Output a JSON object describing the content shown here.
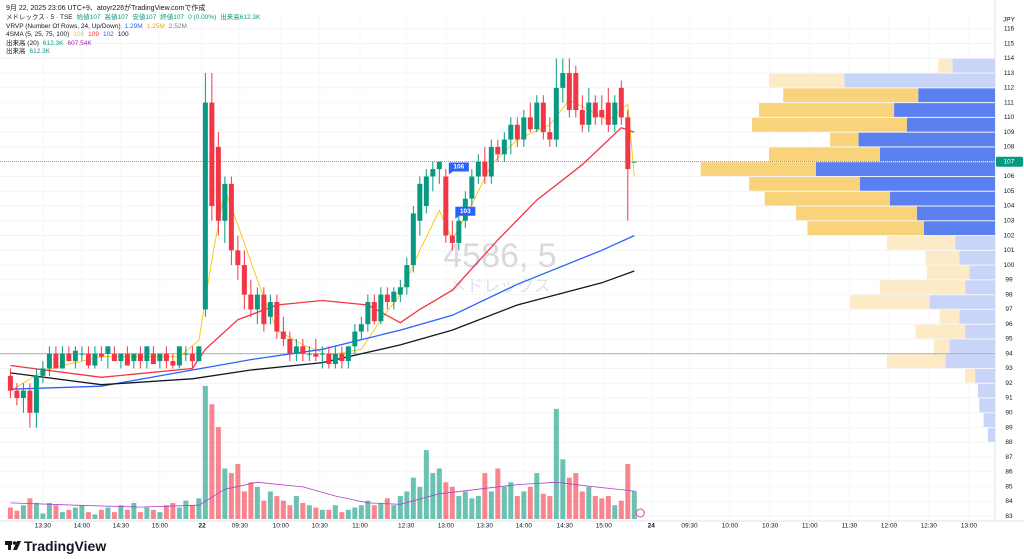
{
  "header": "9月 22, 2025 23:06 UTC+9、atoyr226がTradingView.comで作成",
  "brand": "TradingView",
  "chart_data": {
    "type": "candlestick",
    "legend": [
      {
        "name": "メドレックス · 5 · TSE",
        "values": [
          "始値107",
          "高値107",
          "安値107",
          "終値107",
          "0 (0.00%)",
          "出来高612.3K"
        ],
        "colors": [
          "#089981",
          "#089981",
          "#089981",
          "#089981",
          "#089981",
          "#089981"
        ]
      },
      {
        "name": "VRVP (Number Of Rows, 24, Up/Down)",
        "values": [
          "1.29M",
          "1.25M",
          "2.52M"
        ],
        "colors": [
          "#2962ff",
          "#f7a600",
          "#787b86"
        ]
      },
      {
        "name": "4SMA (5, 25, 75, 100)",
        "values": [
          "106",
          "109",
          "102",
          "100"
        ],
        "colors": [
          "#f7c600",
          "#f23645",
          "#2962ff",
          "#131722"
        ]
      },
      {
        "name": "出来高 (20)",
        "values": [
          "612.3K",
          "607.54K"
        ],
        "colors": [
          "#089981",
          "#9c27b0"
        ]
      },
      {
        "name": "出来高",
        "values": [
          "612.3K"
        ],
        "colors": [
          "#089981"
        ]
      }
    ],
    "watermark": "4586, 5",
    "watermark_sub": "メドレックス",
    "currency": "JPY",
    "xlim": [
      -1.6,
      151.5
    ],
    "xticks": [
      {
        "value": 5.0,
        "label": "13:30"
      },
      {
        "value": 11.0,
        "label": "14:00"
      },
      {
        "value": 17.0,
        "label": "14:30"
      },
      {
        "value": 23.0,
        "label": "15:00"
      },
      {
        "value": 29.5,
        "label": "22"
      },
      {
        "value": 35.3,
        "label": "09:30"
      },
      {
        "value": 41.6,
        "label": "10:00"
      },
      {
        "value": 47.6,
        "label": "10:30"
      },
      {
        "value": 53.8,
        "label": "11:00"
      },
      {
        "value": 60.9,
        "label": "12:30"
      },
      {
        "value": 67.0,
        "label": "13:00"
      },
      {
        "value": 73.0,
        "label": "13:30"
      },
      {
        "value": 79.0,
        "label": "14:00"
      },
      {
        "value": 85.3,
        "label": "14:30"
      },
      {
        "value": 91.3,
        "label": "15:00"
      },
      {
        "value": 98.6,
        "label": "24"
      },
      {
        "value": 104.5,
        "label": "09:30"
      },
      {
        "value": 110.7,
        "label": "10:00"
      },
      {
        "value": 116.9,
        "label": "10:30"
      },
      {
        "value": 123.0,
        "label": "11:00"
      },
      {
        "value": 129.1,
        "label": "11:30"
      },
      {
        "value": 135.2,
        "label": "12:00"
      },
      {
        "value": 141.3,
        "label": "12:30"
      },
      {
        "value": 147.5,
        "label": "13:00"
      }
    ],
    "ylim": [
      82.2,
      117
    ],
    "yticks": [
      83,
      84,
      85,
      86,
      87,
      88,
      89,
      90,
      91,
      92,
      93,
      94,
      95,
      96,
      97,
      98,
      99,
      100,
      101,
      102,
      103,
      104,
      105,
      106,
      107,
      108,
      109,
      110,
      111,
      112,
      113,
      114,
      115,
      116
    ],
    "grid": true,
    "up_color": "#089981",
    "down_color": "#f23645",
    "ohlc": [
      [
        92.5,
        93,
        91,
        91.5
      ],
      [
        91.5,
        92,
        90.5,
        91
      ],
      [
        91,
        92,
        90,
        91.5
      ],
      [
        91.5,
        92,
        89,
        90
      ],
      [
        90,
        93,
        89,
        92.5
      ],
      [
        92.5,
        93.5,
        92,
        93
      ],
      [
        93,
        94.5,
        92.5,
        94
      ],
      [
        94,
        94.5,
        93,
        93
      ],
      [
        93,
        94.5,
        93,
        94
      ],
      [
        94,
        94.5,
        93.5,
        93.5
      ],
      [
        93.5,
        94.5,
        93,
        94.2
      ],
      [
        94,
        94.5,
        93.5,
        94
      ],
      [
        94,
        94.5,
        93,
        93.2
      ],
      [
        93.2,
        94.5,
        93,
        94
      ],
      [
        94,
        94.5,
        93.5,
        93.8
      ],
      [
        94,
        94.5,
        93,
        94.5
      ],
      [
        94,
        94.5,
        93.5,
        93.5
      ],
      [
        93.5,
        94,
        93,
        94
      ],
      [
        94,
        94.5,
        93.5,
        93.2
      ],
      [
        93.5,
        94,
        93,
        94
      ],
      [
        94,
        94.5,
        93,
        93.5
      ],
      [
        93.5,
        94.5,
        93,
        94.5
      ],
      [
        94,
        94.5,
        93.5,
        93.3
      ],
      [
        93.5,
        94,
        93,
        94
      ],
      [
        94,
        94.5,
        93,
        93.5
      ],
      [
        93.5,
        94,
        93,
        93.2
      ],
      [
        93.2,
        94.5,
        93,
        94.5
      ],
      [
        94,
        94.5,
        93.5,
        94
      ],
      [
        94,
        94.5,
        93,
        93.5
      ],
      [
        93.5,
        94.5,
        93.5,
        94.5
      ],
      [
        97,
        113,
        96.5,
        111
      ],
      [
        111,
        113,
        103,
        104
      ],
      [
        108,
        109,
        102,
        103
      ],
      [
        103,
        106,
        101.5,
        105.5
      ],
      [
        105.5,
        106,
        100,
        101
      ],
      [
        101,
        102,
        99,
        100
      ],
      [
        100,
        101,
        97,
        98
      ],
      [
        98,
        99,
        96.5,
        97
      ],
      [
        97,
        98.5,
        96,
        98
      ],
      [
        98,
        98.5,
        95.5,
        96
      ],
      [
        96.5,
        98,
        96,
        97.5
      ],
      [
        97.5,
        98,
        95,
        95.5
      ],
      [
        95.5,
        96.5,
        94.5,
        95
      ],
      [
        95,
        95.5,
        93.5,
        94
      ],
      [
        94,
        95,
        93.5,
        94.5
      ],
      [
        94.5,
        95,
        93.5,
        94
      ],
      [
        94,
        94.5,
        93.5,
        94
      ],
      [
        94,
        95,
        93.5,
        93.8
      ],
      [
        94,
        94.5,
        93,
        94
      ],
      [
        94,
        94.5,
        93,
        93.3
      ],
      [
        93.3,
        94.5,
        93,
        94
      ],
      [
        94,
        94.5,
        93,
        93.5
      ],
      [
        93.5,
        94.5,
        93,
        94.5
      ],
      [
        94.5,
        96,
        94,
        95.5
      ],
      [
        95.5,
        96.5,
        95,
        96
      ],
      [
        96,
        98,
        95.5,
        97.5
      ],
      [
        97.5,
        98,
        96,
        96.2
      ],
      [
        96.2,
        98.5,
        96,
        98
      ],
      [
        98,
        98.5,
        97,
        97.5
      ],
      [
        97.5,
        98.5,
        97,
        98.2
      ],
      [
        98,
        99,
        97.5,
        98.5
      ],
      [
        98.5,
        100.5,
        98,
        100
      ],
      [
        100,
        104,
        99.5,
        103.5
      ],
      [
        103,
        106,
        102,
        105.5
      ],
      [
        104,
        106.5,
        103.5,
        106
      ],
      [
        106,
        107,
        105,
        106.5
      ],
      [
        106.5,
        107,
        105.5,
        107
      ],
      [
        106,
        106.5,
        101.5,
        102
      ],
      [
        102,
        103,
        101,
        101.5
      ],
      [
        101.5,
        103.5,
        101,
        103
      ],
      [
        103,
        105,
        102.5,
        104.5
      ],
      [
        104.5,
        106.5,
        104,
        106
      ],
      [
        106,
        107.5,
        105.5,
        107
      ],
      [
        107,
        108,
        105.5,
        106
      ],
      [
        106,
        108.5,
        105.5,
        108
      ],
      [
        108,
        108.5,
        107,
        107.5
      ],
      [
        107.5,
        109,
        107,
        108.5
      ],
      [
        108.5,
        110,
        107.5,
        109.5
      ],
      [
        109.5,
        110,
        108,
        108.5
      ],
      [
        108.5,
        110.5,
        108,
        110
      ],
      [
        110,
        111,
        109,
        109.2
      ],
      [
        109.2,
        111.5,
        109,
        111
      ],
      [
        111,
        111.5,
        108.5,
        109
      ],
      [
        109,
        110,
        108,
        108.5
      ],
      [
        108.5,
        114,
        108,
        112
      ],
      [
        112,
        114,
        111,
        113
      ],
      [
        113,
        114,
        110,
        110.5
      ],
      [
        113,
        113.5,
        110,
        110.5
      ],
      [
        110.5,
        111.5,
        109,
        109.5
      ],
      [
        109.5,
        112,
        109,
        111
      ],
      [
        111,
        111.5,
        109.5,
        110
      ],
      [
        110.5,
        111.5,
        109.5,
        110
      ],
      [
        111,
        112,
        109,
        109.5
      ],
      [
        109.5,
        111.5,
        109,
        111
      ],
      [
        112,
        112.5,
        109.5,
        110
      ],
      [
        110,
        110.5,
        103,
        106.5
      ],
      [
        107,
        107,
        107,
        107
      ]
    ],
    "volume_ylim": [
      0,
      11000
    ],
    "volume": [
      250,
      180,
      300,
      450,
      350,
      120,
      350,
      300,
      150,
      200,
      250,
      300,
      150,
      100,
      200,
      250,
      150,
      300,
      200,
      350,
      150,
      250,
      200,
      150,
      300,
      350,
      250,
      400,
      300,
      450,
      2900,
      2500,
      2000,
      1100,
      1000,
      1200,
      600,
      800,
      700,
      400,
      600,
      500,
      400,
      300,
      500,
      350,
      300,
      250,
      200,
      200,
      300,
      150,
      200,
      250,
      300,
      400,
      300,
      350,
      450,
      300,
      500,
      600,
      900,
      700,
      1500,
      1000,
      1100,
      800,
      700,
      500,
      600,
      450,
      500,
      1000,
      600,
      1100,
      700,
      800,
      500,
      600,
      700,
      1000,
      550,
      500,
      2400,
      1300,
      900,
      1000,
      600,
      700,
      500,
      450,
      500,
      300,
      400,
      1200,
      612.3
    ],
    "volume_ma": {
      "color": "#b040c8",
      "x": [
        0,
        10,
        20,
        29,
        33,
        38,
        45,
        50,
        55,
        60,
        66,
        72,
        78,
        84,
        90,
        96
      ],
      "values": [
        350,
        300,
        260,
        300,
        650,
        800,
        700,
        500,
        350,
        320,
        550,
        650,
        750,
        800,
        700,
        607.54
      ]
    },
    "ma": [
      {
        "color": "#f7c600",
        "x": [
          0,
          5,
          8,
          14,
          26,
          29,
          31,
          33,
          35,
          38,
          41,
          45,
          49,
          54,
          57,
          60,
          63,
          66,
          68,
          71,
          74,
          78,
          83,
          86,
          89,
          92,
          95,
          96
        ],
        "values": [
          91.5,
          92.8,
          93.2,
          93.8,
          93.8,
          94.9,
          100.4,
          105.1,
          102.7,
          99,
          95.6,
          94.6,
          93.9,
          94.3,
          96.3,
          98,
          101,
          103.7,
          101.7,
          104.1,
          106.8,
          108.5,
          109.5,
          111.2,
          110.5,
          109.8,
          110.9,
          106
        ]
      },
      {
        "color": "#f23645",
        "x": [
          0,
          14,
          28,
          30,
          35,
          41,
          48,
          55,
          60,
          63,
          68,
          75,
          81,
          88,
          94,
          96
        ],
        "values": [
          93.2,
          92.4,
          93,
          94.3,
          96.3,
          97.3,
          97.6,
          97.3,
          96.1,
          97,
          98.3,
          101.7,
          104.4,
          106.8,
          109.3,
          109
        ]
      },
      {
        "color": "#2962ff",
        "x": [
          0,
          14,
          28,
          37,
          48,
          60,
          68,
          78,
          91,
          96
        ],
        "values": [
          91.6,
          91.8,
          92.9,
          93.6,
          94.3,
          95.6,
          96.6,
          98.7,
          101,
          102
        ]
      },
      {
        "color": "#131722",
        "x": [
          0,
          14,
          28,
          37,
          48,
          60,
          68,
          78,
          91,
          96
        ],
        "values": [
          92.7,
          91.9,
          92.3,
          92.9,
          93.4,
          94.6,
          95.6,
          97.3,
          98.8,
          99.6
        ]
      }
    ],
    "profile": {
      "xlim": [
        0,
        700
      ],
      "value_area": [
        103,
        112
      ],
      "colors": {
        "up": "#f9d37a",
        "down": "#5b80f0",
        "up_light": "#fdebc8",
        "down_light": "#c9d5f8"
      },
      "price": [
        114,
        113,
        112,
        111,
        110,
        109,
        108,
        107,
        106,
        105,
        104,
        103,
        102,
        101,
        100,
        99,
        98,
        97,
        96,
        95,
        94,
        93,
        92,
        91,
        90,
        89
      ],
      "up": [
        10,
        53,
        95,
        95,
        109,
        20,
        78,
        81,
        78,
        88,
        85,
        82,
        48,
        24,
        30,
        60,
        56,
        14,
        35,
        11,
        41,
        7,
        0,
        0,
        0,
        0
      ],
      "down": [
        30,
        106,
        54,
        71,
        62,
        96,
        81,
        126,
        95,
        74,
        55,
        50,
        28,
        25,
        18,
        21,
        46,
        25,
        21,
        32,
        35,
        14,
        12,
        11,
        8,
        5
      ]
    },
    "flags": [
      {
        "x": 67,
        "value": 106
      },
      {
        "x": 68,
        "value": 103
      }
    ],
    "last_price": 107,
    "ref_line": 94
  }
}
